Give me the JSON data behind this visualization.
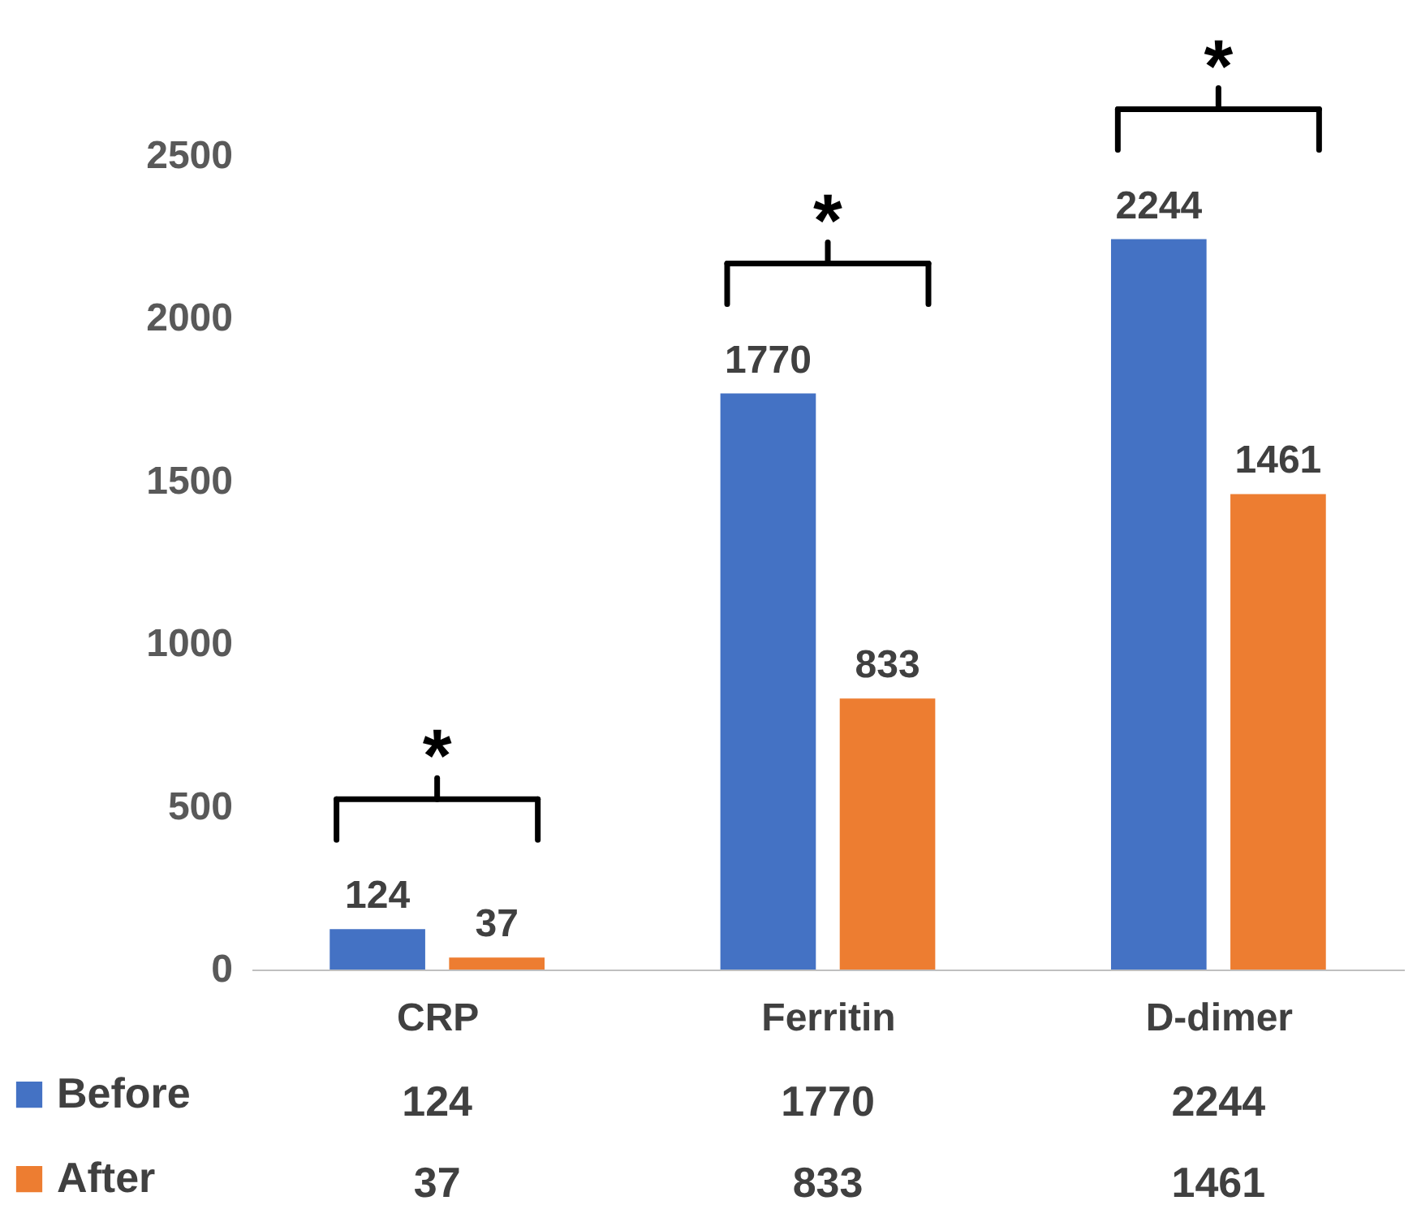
{
  "chart_data": {
    "type": "bar",
    "categories": [
      "CRP",
      "Ferritin",
      "D-dimer"
    ],
    "series": [
      {
        "name": "Before",
        "color": "#4472c4",
        "values": [
          124,
          1770,
          2244
        ],
        "value_labels": [
          "124",
          "1770",
          "2244"
        ]
      },
      {
        "name": "After",
        "color": "#ed7d31",
        "values": [
          37,
          833,
          1461
        ],
        "value_labels": [
          "37",
          "833",
          "1461"
        ]
      }
    ],
    "ylim": [
      0,
      2500
    ],
    "yticks": [
      0,
      500,
      1000,
      1500,
      2000,
      2500
    ],
    "data_labels": true,
    "legend": "bottom left",
    "annotations": [
      "*",
      "*",
      "*"
    ]
  }
}
